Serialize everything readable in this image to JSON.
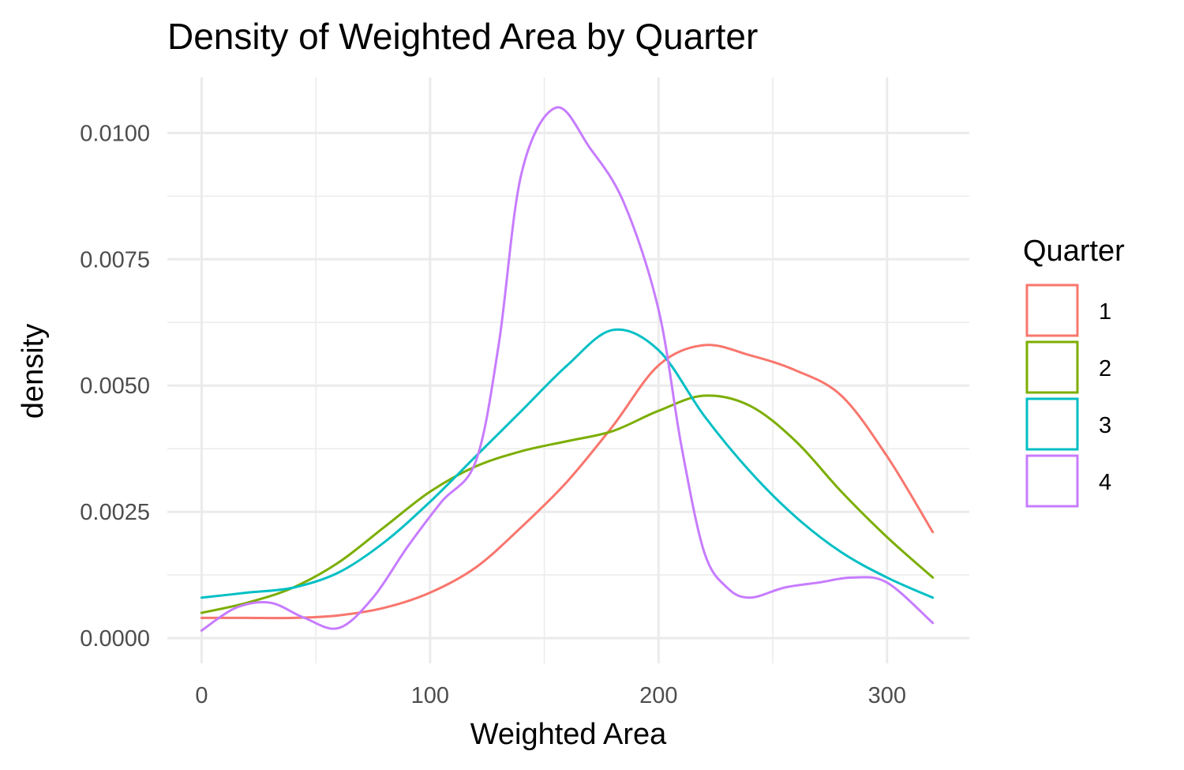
{
  "chart_data": {
    "type": "line",
    "title": "Density of Weighted Area by Quarter",
    "xlabel": "Weighted Area",
    "ylabel": "density",
    "xlim": [
      -15,
      336
    ],
    "ylim": [
      -0.0005,
      0.0111
    ],
    "x_ticks": [
      0,
      100,
      200,
      300
    ],
    "x_tick_labels": [
      "0",
      "100",
      "200",
      "300"
    ],
    "x_minor_ticks": [
      50,
      150,
      250
    ],
    "y_ticks": [
      0.0,
      0.0025,
      0.005,
      0.0075,
      0.01
    ],
    "y_tick_labels": [
      "0.0000",
      "0.0025",
      "0.0050",
      "0.0075",
      "0.0100"
    ],
    "y_minor_ticks": [
      0.00125,
      0.00375,
      0.00625,
      0.00875
    ],
    "grid": true,
    "legend_title": "Quarter",
    "legend_position": "right",
    "series": [
      {
        "name": "1",
        "color": "#F8766D",
        "x": [
          0,
          20,
          40,
          60,
          80,
          100,
          120,
          140,
          160,
          180,
          200,
          220,
          240,
          260,
          280,
          300,
          320
        ],
        "y": [
          0.0004,
          0.0004,
          0.0004,
          0.00045,
          0.0006,
          0.0009,
          0.0014,
          0.0022,
          0.0031,
          0.0042,
          0.0054,
          0.0058,
          0.0056,
          0.0053,
          0.0048,
          0.0036,
          0.0021
        ]
      },
      {
        "name": "2",
        "color": "#7CAE00",
        "x": [
          0,
          20,
          40,
          60,
          80,
          100,
          120,
          140,
          160,
          180,
          200,
          220,
          240,
          260,
          280,
          300,
          320
        ],
        "y": [
          0.0005,
          0.0007,
          0.001,
          0.0015,
          0.0022,
          0.0029,
          0.0034,
          0.0037,
          0.0039,
          0.0041,
          0.0045,
          0.0048,
          0.0046,
          0.0039,
          0.0029,
          0.002,
          0.0012
        ]
      },
      {
        "name": "3",
        "color": "#00BFC4",
        "x": [
          0,
          20,
          40,
          60,
          80,
          100,
          120,
          140,
          160,
          180,
          200,
          220,
          240,
          260,
          280,
          300,
          320
        ],
        "y": [
          0.0008,
          0.0009,
          0.001,
          0.0013,
          0.0019,
          0.0027,
          0.0036,
          0.0045,
          0.0054,
          0.0061,
          0.0057,
          0.0044,
          0.0033,
          0.0024,
          0.0017,
          0.0012,
          0.0008
        ]
      },
      {
        "name": "4",
        "color": "#C77CFF",
        "x": [
          0,
          15,
          30,
          45,
          60,
          75,
          90,
          105,
          120,
          130,
          140,
          155,
          170,
          185,
          200,
          210,
          220,
          230,
          240,
          255,
          270,
          285,
          300,
          320
        ],
        "y": [
          0.00015,
          0.0006,
          0.0007,
          0.0004,
          0.0002,
          0.0008,
          0.0018,
          0.0027,
          0.0035,
          0.0058,
          0.0092,
          0.0105,
          0.0097,
          0.0086,
          0.0065,
          0.0038,
          0.0017,
          0.001,
          0.0008,
          0.001,
          0.0011,
          0.0012,
          0.0011,
          0.0003
        ]
      }
    ]
  }
}
